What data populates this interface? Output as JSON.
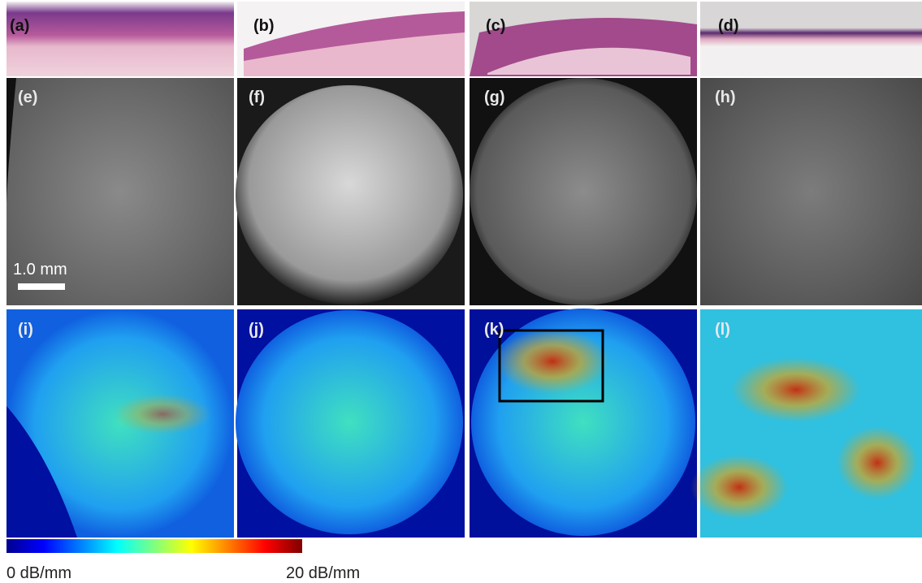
{
  "panels": [
    {
      "label": "(a)"
    },
    {
      "label": "(b)"
    },
    {
      "label": "(c)"
    },
    {
      "label": "(d)"
    },
    {
      "label": "(e)"
    },
    {
      "label": "(f)"
    },
    {
      "label": "(g)"
    },
    {
      "label": "(h)"
    },
    {
      "label": "(i)"
    },
    {
      "label": "(j)"
    },
    {
      "label": "(k)"
    },
    {
      "label": "(l)"
    }
  ],
  "scale_bar": {
    "label": "1.0 mm"
  },
  "colorbar": {
    "min_label": "0 dB/mm",
    "max_label": "20 dB/mm"
  }
}
